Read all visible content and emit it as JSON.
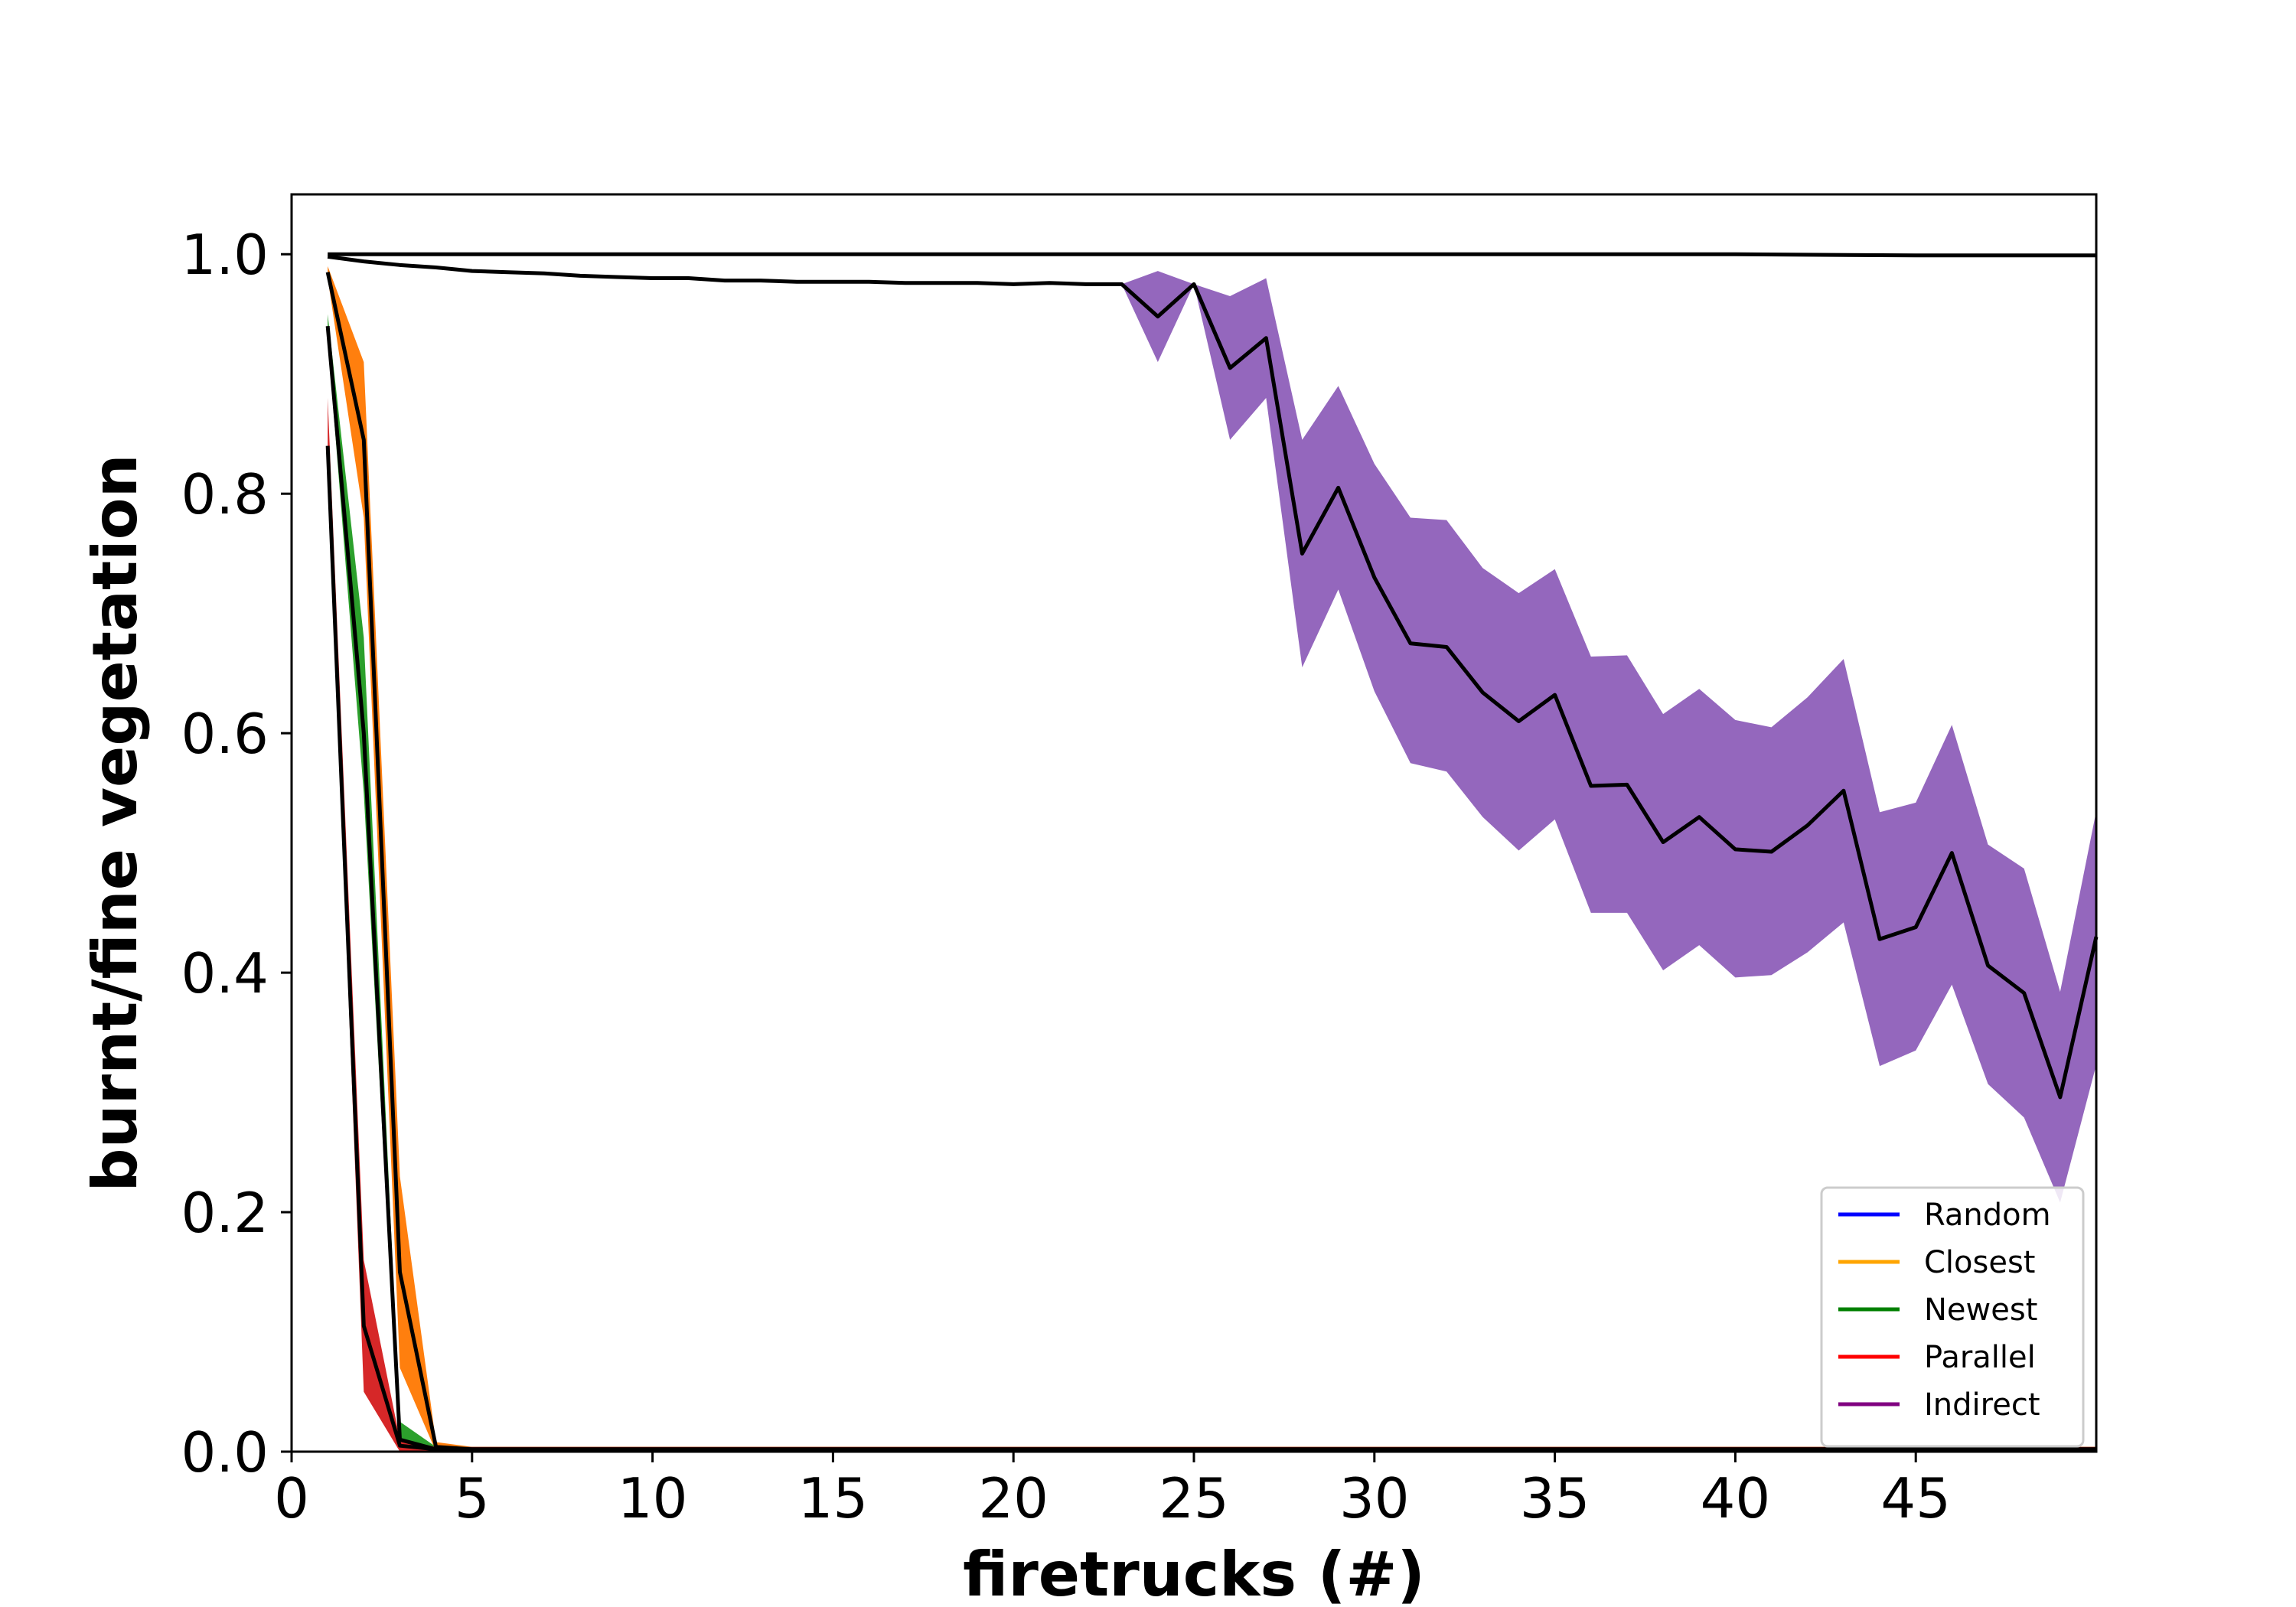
{
  "chart_data": {
    "type": "line",
    "title": "",
    "xlabel": "firetrucks (#)",
    "ylabel": "burnt/fine vegetation",
    "xlim": [
      0,
      50
    ],
    "ylim": [
      0,
      1.05
    ],
    "xticks": [
      0,
      5,
      10,
      15,
      20,
      25,
      30,
      35,
      40,
      45
    ],
    "yticks": [
      0.0,
      0.2,
      0.4,
      0.6,
      0.8,
      1.0
    ],
    "grid": false,
    "legend_position": "bottom-right",
    "series": [
      {
        "name": "Random",
        "color": "#0000ff",
        "band_color": "#1f77b4",
        "x": [
          1,
          5,
          10,
          15,
          20,
          25,
          30,
          35,
          40,
          45,
          50
        ],
        "mean": [
          1.0,
          1.0,
          1.0,
          1.0,
          1.0,
          1.0,
          1.0,
          1.0,
          1.0,
          0.999,
          0.999
        ],
        "lower": [
          1.0,
          1.0,
          1.0,
          1.0,
          1.0,
          1.0,
          1.0,
          1.0,
          1.0,
          0.999,
          0.999
        ],
        "upper": [
          1.0,
          1.0,
          1.0,
          1.0,
          1.0,
          1.0,
          1.0,
          1.0,
          1.0,
          0.999,
          0.999
        ]
      },
      {
        "name": "Closest",
        "color": "#ffa500",
        "band_color": "#ff7f0e",
        "x": [
          1,
          2,
          3,
          4,
          5,
          10,
          20,
          30,
          40,
          50
        ],
        "mean": [
          0.985,
          0.845,
          0.15,
          0.004,
          0.002,
          0.002,
          0.002,
          0.002,
          0.002,
          0.002
        ],
        "lower": [
          0.98,
          0.78,
          0.07,
          0.0,
          0.0,
          0.0,
          0.0,
          0.0,
          0.0,
          0.0
        ],
        "upper": [
          0.99,
          0.91,
          0.23,
          0.008,
          0.004,
          0.004,
          0.004,
          0.004,
          0.004,
          0.004
        ]
      },
      {
        "name": "Newest",
        "color": "#008000",
        "band_color": "#2ca02c",
        "x": [
          1,
          2,
          3,
          4,
          5,
          10,
          20,
          30,
          40,
          50
        ],
        "mean": [
          0.94,
          0.6,
          0.01,
          0.002,
          0.002,
          0.002,
          0.002,
          0.002,
          0.002,
          0.002
        ],
        "lower": [
          0.93,
          0.55,
          0.0,
          0.0,
          0.0,
          0.0,
          0.0,
          0.0,
          0.0,
          0.0
        ],
        "upper": [
          0.95,
          0.68,
          0.025,
          0.004,
          0.004,
          0.004,
          0.004,
          0.004,
          0.004,
          0.004
        ]
      },
      {
        "name": "Parallel",
        "color": "#ff0000",
        "band_color": "#d62728",
        "x": [
          1,
          2,
          3,
          4,
          5,
          10,
          20,
          30,
          40,
          50
        ],
        "mean": [
          0.84,
          0.105,
          0.005,
          0.002,
          0.002,
          0.002,
          0.002,
          0.002,
          0.002,
          0.002
        ],
        "lower": [
          0.83,
          0.05,
          0.0,
          0.0,
          0.0,
          0.0,
          0.0,
          0.0,
          0.0,
          0.0
        ],
        "upper": [
          0.88,
          0.16,
          0.01,
          0.004,
          0.004,
          0.004,
          0.004,
          0.004,
          0.004,
          0.004
        ]
      },
      {
        "name": "Indirect",
        "color": "#800080",
        "band_color": "#9467bd",
        "x": [
          1,
          2,
          3,
          4,
          5,
          6,
          7,
          8,
          9,
          10,
          11,
          12,
          13,
          14,
          15,
          16,
          17,
          18,
          19,
          20,
          21,
          22,
          23,
          24,
          25,
          26,
          27,
          28,
          29,
          30,
          31,
          32,
          33,
          34,
          35,
          36,
          37,
          38,
          39,
          40,
          41,
          42,
          43,
          44,
          45,
          46,
          47,
          48,
          49,
          50
        ],
        "mean": [
          0.998,
          0.994,
          0.991,
          0.989,
          0.986,
          0.985,
          0.984,
          0.982,
          0.981,
          0.98,
          0.98,
          0.978,
          0.978,
          0.977,
          0.977,
          0.977,
          0.976,
          0.976,
          0.976,
          0.975,
          0.976,
          0.975,
          0.975,
          0.948,
          0.975,
          0.905,
          0.93,
          0.75,
          0.805,
          0.73,
          0.675,
          0.672,
          0.634,
          0.61,
          0.632,
          0.556,
          0.557,
          0.509,
          0.53,
          0.503,
          0.501,
          0.523,
          0.552,
          0.428,
          0.438,
          0.5,
          0.406,
          0.383,
          0.296,
          0.43
        ],
        "lower": [
          0.998,
          0.994,
          0.991,
          0.989,
          0.986,
          0.985,
          0.984,
          0.982,
          0.981,
          0.98,
          0.98,
          0.978,
          0.978,
          0.977,
          0.977,
          0.977,
          0.976,
          0.976,
          0.976,
          0.975,
          0.976,
          0.975,
          0.975,
          0.91,
          0.975,
          0.845,
          0.88,
          0.655,
          0.72,
          0.635,
          0.575,
          0.568,
          0.53,
          0.502,
          0.528,
          0.45,
          0.45,
          0.402,
          0.423,
          0.396,
          0.398,
          0.417,
          0.442,
          0.322,
          0.335,
          0.39,
          0.307,
          0.279,
          0.208,
          0.323
        ],
        "upper": [
          0.998,
          0.994,
          0.991,
          0.989,
          0.986,
          0.985,
          0.984,
          0.982,
          0.981,
          0.98,
          0.98,
          0.978,
          0.978,
          0.977,
          0.977,
          0.977,
          0.976,
          0.976,
          0.976,
          0.975,
          0.976,
          0.975,
          0.975,
          0.986,
          0.975,
          0.965,
          0.98,
          0.845,
          0.89,
          0.825,
          0.78,
          0.778,
          0.738,
          0.717,
          0.737,
          0.664,
          0.665,
          0.616,
          0.637,
          0.611,
          0.605,
          0.63,
          0.662,
          0.534,
          0.542,
          0.607,
          0.507,
          0.487,
          0.384,
          0.535
        ]
      }
    ]
  }
}
